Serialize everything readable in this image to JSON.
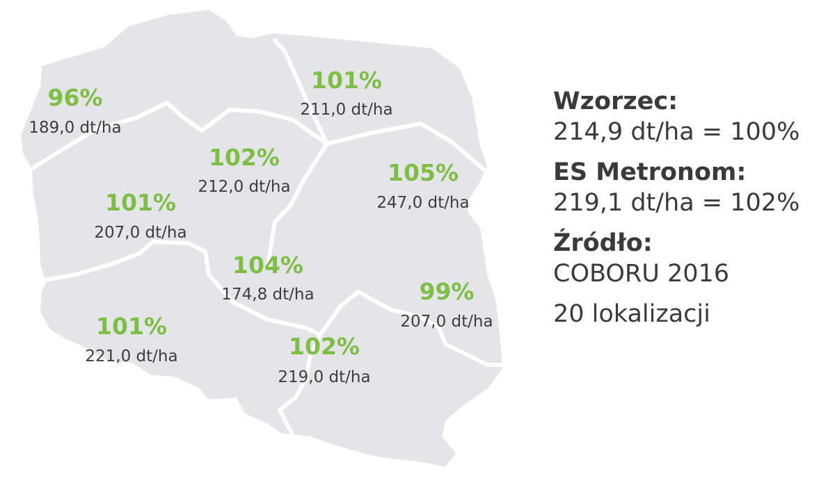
{
  "map": {
    "regions": [
      {
        "id": "northwest",
        "percent": "96%",
        "yield": "189,0 dt/ha"
      },
      {
        "id": "north",
        "percent": "101%",
        "yield": "211,0 dt/ha"
      },
      {
        "id": "center-north",
        "percent": "102%",
        "yield": "212,0 dt/ha"
      },
      {
        "id": "west",
        "percent": "101%",
        "yield": "207,0 dt/ha"
      },
      {
        "id": "northeast",
        "percent": "105%",
        "yield": "247,0 dt/ha"
      },
      {
        "id": "center",
        "percent": "104%",
        "yield": "174,8 dt/ha"
      },
      {
        "id": "east",
        "percent": "99%",
        "yield": "207,0 dt/ha"
      },
      {
        "id": "southwest",
        "percent": "101%",
        "yield": "221,0 dt/ha"
      },
      {
        "id": "south",
        "percent": "102%",
        "yield": "219,0 dt/ha"
      }
    ]
  },
  "legend": {
    "reference_label": "Wzorzec:",
    "reference_value": "214,9 dt/ha = 100%",
    "variety_label": "ES Metronom:",
    "variety_value": "219,1 dt/ha = 102%",
    "source_label": "Źródło:",
    "source_value": "COBORU 2016",
    "locations": "20 lokalizacji"
  },
  "colors": {
    "map_fill": "#e4e4e9",
    "border": "#ffffff",
    "percent_text": "#7cbf43",
    "yield_text": "#3d3d3d",
    "legend_text": "#3a3a3a"
  }
}
